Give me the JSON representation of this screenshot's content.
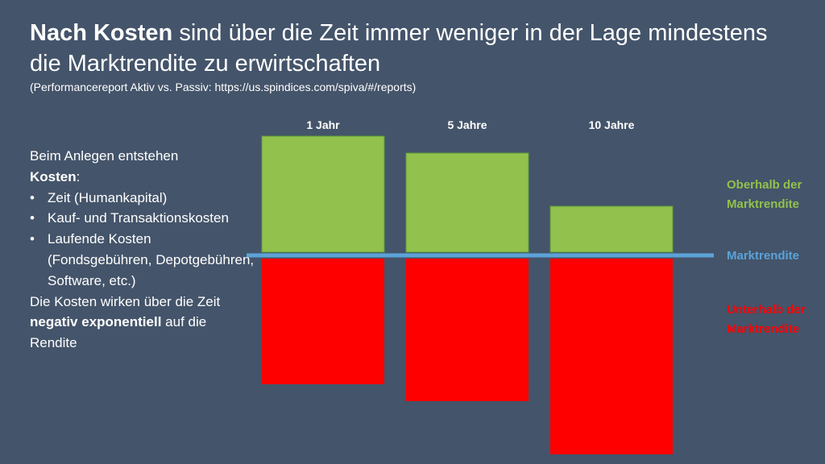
{
  "title": {
    "bold": "Nach Kosten",
    "rest": " sind über die Zeit immer weniger in der Lage mindestens die Marktrendite zu erwirtschaften"
  },
  "subtitle": "(Performancereport Aktiv vs. Passiv: https://us.spindices.com/spiva/#/reports)",
  "left": {
    "intro": "Beim Anlegen entstehen",
    "intro_bold": "Kosten",
    "intro_end": ":",
    "bullets": [
      "Zeit (Humankapital)",
      "Kauf- und Transaktionskosten",
      "Laufende Kosten (Fondsgebühren, Depotgebühren, Software, etc.)"
    ],
    "conclusion_start": "Die Kosten wirken über die Zeit",
    "conclusion_bold": "negativ exponentiell",
    "conclusion_end": " auf die Rendite"
  },
  "chart_data": {
    "type": "bar",
    "categories": [
      "1 Jahr",
      "5 Jahre",
      "10 Jahre"
    ],
    "series": [
      {
        "name": "Oberhalb der Marktrendite",
        "values": [
          48,
          41,
          19
        ],
        "color": "#92c14d"
      },
      {
        "name": "Unterhalb der Marktrendite",
        "values": [
          -52,
          -59,
          -81
        ],
        "color": "#ff0000"
      }
    ],
    "ylim": [
      -81,
      48
    ],
    "reference_line": {
      "name": "Marktrendite",
      "value": 0,
      "color": "#5ba3d8"
    },
    "legend_placement": "right"
  }
}
